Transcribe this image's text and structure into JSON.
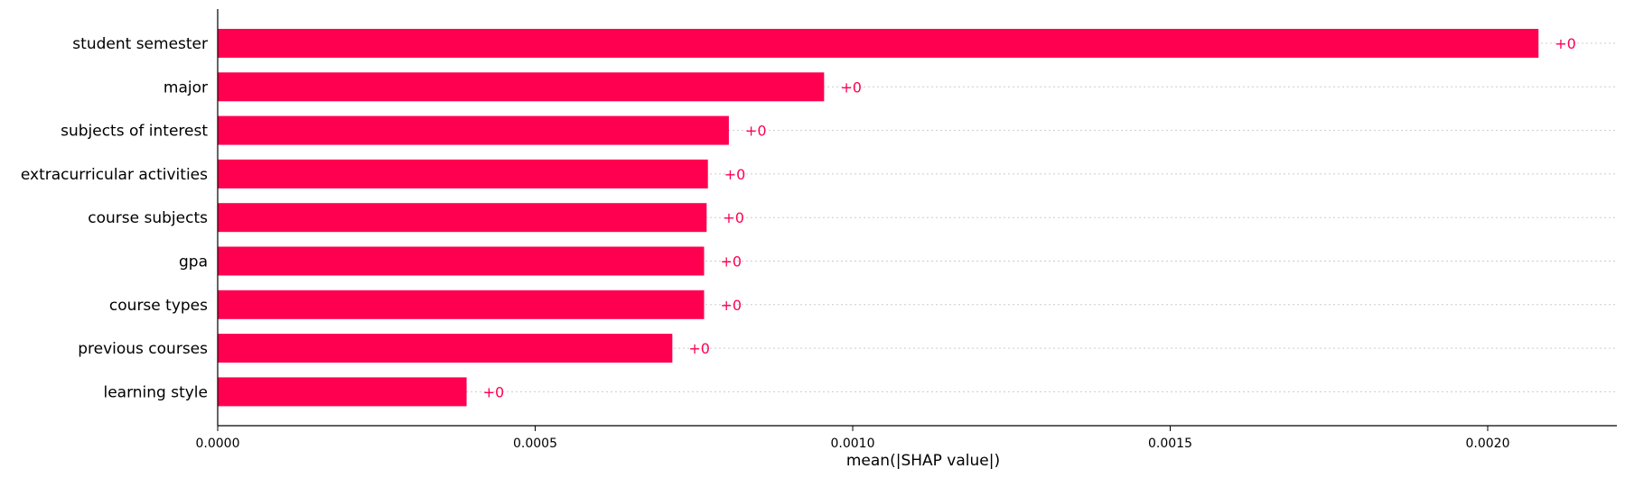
{
  "chart_data": {
    "type": "bar",
    "orientation": "horizontal",
    "categories": [
      "student semester",
      "major",
      "subjects of interest",
      "extracurricular activities",
      "course subjects",
      "gpa",
      "course types",
      "previous courses",
      "learning style"
    ],
    "values": [
      0.00208,
      0.000955,
      0.000805,
      0.000772,
      0.00077,
      0.000766,
      0.000766,
      0.000716,
      0.000392
    ],
    "value_labels": [
      "+0",
      "+0",
      "+0",
      "+0",
      "+0",
      "+0",
      "+0",
      "+0",
      "+0"
    ],
    "xlabel": "mean(|SHAP value|)",
    "xlim": [
      0,
      0.0023
    ],
    "xticks": [
      0,
      0.0005,
      0.001,
      0.0015,
      0.002
    ],
    "xtick_labels": [
      "0.0000",
      "0.0005",
      "0.0010",
      "0.0015",
      "0.0020"
    ],
    "grid": "dotted row guides",
    "colors": {
      "bar": "#ff0051",
      "value_label": "#ff0051",
      "guide": "#cccccc",
      "axis": "#000000"
    }
  }
}
